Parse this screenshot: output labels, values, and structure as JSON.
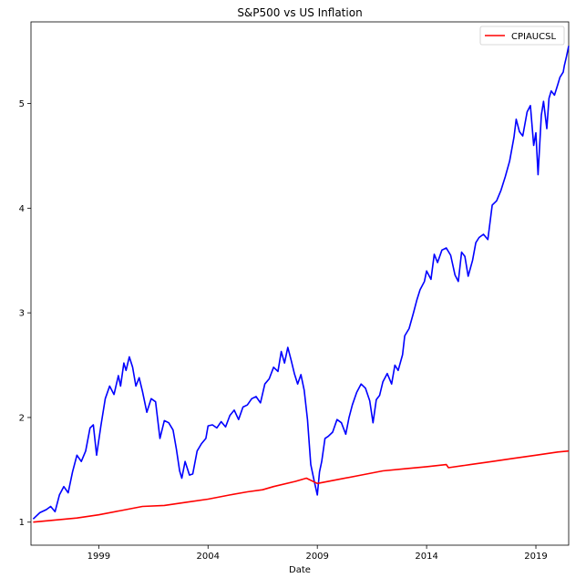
{
  "chart_data": {
    "type": "line",
    "title": "S&P500 vs US Inflation",
    "xlabel": "Date",
    "ylabel": "",
    "xlim": [
      1995.9,
      2020.5
    ],
    "ylim": [
      0.78,
      5.78
    ],
    "x_ticks": [
      1999,
      2004,
      2009,
      2014,
      2019
    ],
    "y_ticks": [
      1,
      2,
      3,
      4,
      5
    ],
    "grid": false,
    "legend": {
      "position": "top-right",
      "entries": [
        "CPIAUCSL"
      ]
    },
    "series": [
      {
        "label": "",
        "color": "#0000ff",
        "show_in_legend": false,
        "x": [
          1996.0,
          1996.3,
          1996.6,
          1996.8,
          1997.0,
          1997.2,
          1997.4,
          1997.6,
          1997.8,
          1998.0,
          1998.2,
          1998.4,
          1998.6,
          1998.75,
          1998.9,
          1999.1,
          1999.3,
          1999.5,
          1999.7,
          1999.9,
          2000.0,
          2000.15,
          2000.25,
          2000.4,
          2000.55,
          2000.7,
          2000.85,
          2001.0,
          2001.2,
          2001.4,
          2001.6,
          2001.8,
          2002.0,
          2002.2,
          2002.4,
          2002.55,
          2002.7,
          2002.8,
          2002.95,
          2003.15,
          2003.3,
          2003.5,
          2003.7,
          2003.9,
          2004.0,
          2004.2,
          2004.4,
          2004.6,
          2004.8,
          2005.0,
          2005.2,
          2005.4,
          2005.6,
          2005.8,
          2006.0,
          2006.2,
          2006.4,
          2006.6,
          2006.8,
          2007.0,
          2007.2,
          2007.35,
          2007.5,
          2007.65,
          2007.8,
          2007.95,
          2008.1,
          2008.25,
          2008.4,
          2008.55,
          2008.7,
          2008.85,
          2009.0,
          2009.1,
          2009.2,
          2009.35,
          2009.5,
          2009.7,
          2009.9,
          2010.1,
          2010.3,
          2010.45,
          2010.6,
          2010.8,
          2011.0,
          2011.2,
          2011.4,
          2011.55,
          2011.7,
          2011.85,
          2012.0,
          2012.2,
          2012.4,
          2012.55,
          2012.7,
          2012.9,
          2013.0,
          2013.2,
          2013.4,
          2013.55,
          2013.7,
          2013.9,
          2014.0,
          2014.2,
          2014.35,
          2014.5,
          2014.7,
          2014.9,
          2015.1,
          2015.3,
          2015.45,
          2015.6,
          2015.75,
          2015.9,
          2016.1,
          2016.25,
          2016.4,
          2016.6,
          2016.8,
          2017.0,
          2017.2,
          2017.4,
          2017.6,
          2017.8,
          2018.0,
          2018.1,
          2018.25,
          2018.4,
          2018.6,
          2018.75,
          2018.9,
          2019.0,
          2019.1,
          2019.25,
          2019.35,
          2019.5,
          2019.6,
          2019.7,
          2019.85,
          2020.0,
          2020.1,
          2020.25,
          2020.3,
          2020.4,
          2020.5
        ],
        "y": [
          1.03,
          1.09,
          1.12,
          1.15,
          1.1,
          1.26,
          1.34,
          1.28,
          1.48,
          1.64,
          1.58,
          1.68,
          1.9,
          1.93,
          1.64,
          1.92,
          2.18,
          2.3,
          2.22,
          2.4,
          2.3,
          2.52,
          2.45,
          2.58,
          2.48,
          2.3,
          2.38,
          2.25,
          2.05,
          2.18,
          2.15,
          1.8,
          1.97,
          1.95,
          1.88,
          1.7,
          1.49,
          1.42,
          1.58,
          1.45,
          1.46,
          1.68,
          1.75,
          1.8,
          1.92,
          1.93,
          1.9,
          1.96,
          1.91,
          2.02,
          2.07,
          1.98,
          2.1,
          2.12,
          2.18,
          2.2,
          2.14,
          2.32,
          2.37,
          2.48,
          2.44,
          2.63,
          2.52,
          2.67,
          2.55,
          2.42,
          2.32,
          2.41,
          2.26,
          1.98,
          1.55,
          1.4,
          1.26,
          1.48,
          1.58,
          1.8,
          1.82,
          1.86,
          1.98,
          1.95,
          1.84,
          2.0,
          2.12,
          2.24,
          2.32,
          2.28,
          2.16,
          1.95,
          2.17,
          2.21,
          2.34,
          2.42,
          2.32,
          2.5,
          2.45,
          2.6,
          2.78,
          2.85,
          3.0,
          3.12,
          3.22,
          3.3,
          3.4,
          3.32,
          3.56,
          3.48,
          3.6,
          3.62,
          3.55,
          3.36,
          3.3,
          3.58,
          3.54,
          3.35,
          3.5,
          3.67,
          3.72,
          3.75,
          3.7,
          4.03,
          4.07,
          4.17,
          4.3,
          4.45,
          4.68,
          4.85,
          4.73,
          4.69,
          4.92,
          4.98,
          4.6,
          4.72,
          4.32,
          4.89,
          5.02,
          4.76,
          5.05,
          5.12,
          5.08,
          5.18,
          5.25,
          5.3,
          5.36,
          5.45,
          5.55
        ]
      },
      {
        "label": "CPIAUCSL",
        "color": "#ff0000",
        "show_in_legend": true,
        "x": [
          1996.0,
          1997.0,
          1998.0,
          1999.0,
          2000.0,
          2001.0,
          2002.0,
          2003.0,
          2004.0,
          2005.0,
          2005.8,
          2006.5,
          2007.0,
          2008.0,
          2008.5,
          2009.0,
          2010.0,
          2011.0,
          2012.0,
          2013.0,
          2014.0,
          2014.9,
          2015.0,
          2016.0,
          2017.0,
          2018.0,
          2019.0,
          2020.0,
          2020.5
        ],
        "y": [
          1.0,
          1.02,
          1.04,
          1.07,
          1.11,
          1.15,
          1.16,
          1.19,
          1.22,
          1.26,
          1.29,
          1.31,
          1.34,
          1.39,
          1.42,
          1.37,
          1.41,
          1.45,
          1.49,
          1.51,
          1.53,
          1.55,
          1.52,
          1.55,
          1.58,
          1.61,
          1.64,
          1.67,
          1.68
        ]
      }
    ]
  }
}
